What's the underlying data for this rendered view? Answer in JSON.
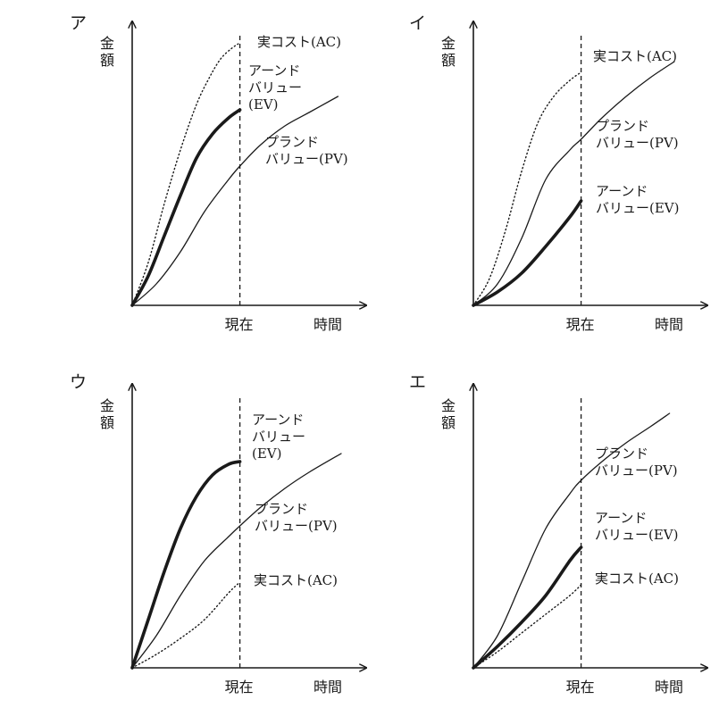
{
  "chart_data": [
    {
      "type": "line",
      "panel": "ア",
      "ylabel": "金額",
      "xlabel": "時間",
      "now_label": "現在",
      "series": [
        {
          "name": "実コスト(AC)",
          "label_lines": [
            "実コスト(AC)"
          ],
          "style": "dotted",
          "points": [
            [
              0,
              0
            ],
            [
              10,
              16
            ],
            [
              20,
              38
            ],
            [
              30,
              58
            ],
            [
              40,
              75
            ],
            [
              48,
              85
            ],
            [
              55,
              92
            ],
            [
              62,
              96
            ],
            [
              67,
              98
            ]
          ]
        },
        {
          "name": "アーンドバリュー(EV)",
          "label_lines": [
            "アーンド",
            "バリュー",
            "(EV)"
          ],
          "style": "bold",
          "points": [
            [
              0,
              0
            ],
            [
              10,
              11
            ],
            [
              20,
              26
            ],
            [
              30,
              41
            ],
            [
              40,
              55
            ],
            [
              50,
              64
            ],
            [
              60,
              70
            ],
            [
              67,
              73
            ]
          ]
        },
        {
          "name": "プランドバリュー(PV)",
          "label_lines": [
            "プランド",
            "バリュー(PV)"
          ],
          "style": "thin",
          "points": [
            [
              0,
              0
            ],
            [
              15,
              8
            ],
            [
              30,
              20
            ],
            [
              45,
              35
            ],
            [
              60,
              47
            ],
            [
              67,
              52
            ],
            [
              80,
              60
            ],
            [
              95,
              67
            ],
            [
              110,
              72
            ],
            [
              128,
              78
            ]
          ]
        }
      ]
    },
    {
      "type": "line",
      "panel": "イ",
      "ylabel": "金額",
      "xlabel": "時間",
      "now_label": "現在",
      "series": [
        {
          "name": "実コスト(AC)",
          "label_lines": [
            "実コスト(AC)"
          ],
          "style": "dotted",
          "points": [
            [
              0,
              0
            ],
            [
              10,
              10
            ],
            [
              20,
              28
            ],
            [
              30,
              50
            ],
            [
              40,
              68
            ],
            [
              50,
              78
            ],
            [
              60,
              84
            ],
            [
              67,
              87
            ]
          ]
        },
        {
          "name": "プランドバリュー(PV)",
          "label_lines": [
            "プランド",
            "バリュー(PV)"
          ],
          "style": "thin",
          "points": [
            [
              0,
              0
            ],
            [
              15,
              8
            ],
            [
              30,
              25
            ],
            [
              45,
              47
            ],
            [
              60,
              58
            ],
            [
              67,
              62
            ],
            [
              80,
              70
            ],
            [
              95,
              78
            ],
            [
              110,
              85
            ],
            [
              125,
              91
            ]
          ]
        },
        {
          "name": "アーンドバリュー(EV)",
          "label_lines": [
            "アーンド",
            "バリュー(EV)"
          ],
          "style": "bold",
          "points": [
            [
              0,
              0
            ],
            [
              15,
              5
            ],
            [
              30,
              12
            ],
            [
              45,
              22
            ],
            [
              60,
              33
            ],
            [
              67,
              39
            ]
          ]
        }
      ]
    },
    {
      "type": "line",
      "panel": "ウ",
      "ylabel": "金額",
      "xlabel": "時間",
      "now_label": "現在",
      "series": [
        {
          "name": "アーンドバリュー(EV)",
          "label_lines": [
            "アーンド",
            "バリュー",
            "(EV)"
          ],
          "style": "bold",
          "points": [
            [
              0,
              0
            ],
            [
              10,
              18
            ],
            [
              20,
              36
            ],
            [
              30,
              52
            ],
            [
              40,
              64
            ],
            [
              50,
              72
            ],
            [
              60,
              76
            ],
            [
              67,
              77
            ]
          ]
        },
        {
          "name": "プランドバリュー(PV)",
          "label_lines": [
            "プランド",
            "バリュー(PV)"
          ],
          "style": "thin",
          "points": [
            [
              0,
              0
            ],
            [
              15,
              12
            ],
            [
              30,
              27
            ],
            [
              45,
              40
            ],
            [
              60,
              49
            ],
            [
              67,
              53
            ],
            [
              80,
              60
            ],
            [
              95,
              67
            ],
            [
              110,
              73
            ],
            [
              130,
              80
            ]
          ]
        },
        {
          "name": "実コスト(AC)",
          "label_lines": [
            "実コスト(AC)"
          ],
          "style": "dotted",
          "points": [
            [
              0,
              0
            ],
            [
              15,
              5
            ],
            [
              30,
              11
            ],
            [
              45,
              18
            ],
            [
              60,
              28
            ],
            [
              67,
              32
            ]
          ]
        }
      ]
    },
    {
      "type": "line",
      "panel": "エ",
      "ylabel": "金額",
      "xlabel": "時間",
      "now_label": "現在",
      "series": [
        {
          "name": "プランドバリュー(PV)",
          "label_lines": [
            "プランド",
            "バリュー(PV)"
          ],
          "style": "thin",
          "points": [
            [
              0,
              0
            ],
            [
              15,
              12
            ],
            [
              30,
              32
            ],
            [
              45,
              52
            ],
            [
              60,
              65
            ],
            [
              67,
              70
            ],
            [
              80,
              77
            ],
            [
              95,
              84
            ],
            [
              110,
              90
            ],
            [
              122,
              95
            ]
          ]
        },
        {
          "name": "アーンドバリュー(EV)",
          "label_lines": [
            "アーンド",
            "バリュー(EV)"
          ],
          "style": "bold",
          "points": [
            [
              0,
              0
            ],
            [
              15,
              8
            ],
            [
              30,
              17
            ],
            [
              45,
              27
            ],
            [
              60,
              40
            ],
            [
              67,
              45
            ]
          ]
        },
        {
          "name": "実コスト(AC)",
          "label_lines": [
            "実コスト(AC)"
          ],
          "style": "dotted",
          "points": [
            [
              0,
              0
            ],
            [
              15,
              6
            ],
            [
              30,
              13
            ],
            [
              45,
              20
            ],
            [
              60,
              27
            ],
            [
              67,
              31
            ]
          ]
        }
      ]
    }
  ]
}
